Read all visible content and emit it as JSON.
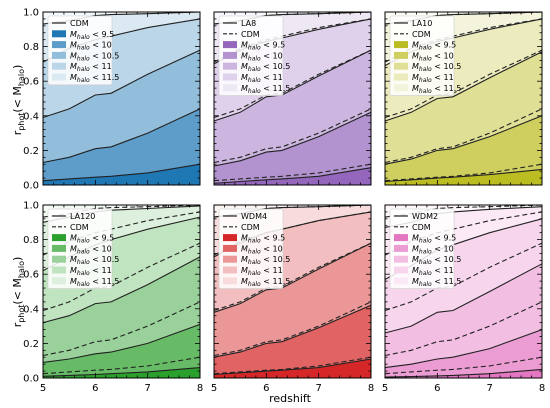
{
  "figure": {
    "ylabel_main": "r",
    "ylabel_sub": "phot",
    "ylabel_paren_open": "(< M",
    "ylabel_paren_sub": "halo",
    "ylabel_paren_close": ")",
    "xlabel": "redshift"
  },
  "chart_data": [
    {
      "type": "area",
      "model": "CDM",
      "color": "#1f77b4",
      "legend": [
        "CDM",
        "M_halo < 9.5",
        "M_halo < 10",
        "M_halo < 10.5",
        "M_halo < 11",
        "M_halo < 11.5"
      ],
      "x": [
        5.0,
        5.5,
        6.0,
        6.3,
        7.0,
        8.0
      ],
      "cdm_curves": [],
      "series": [
        {
          "name": "M_halo < 9.5",
          "values": [
            0.025,
            0.035,
            0.045,
            0.05,
            0.07,
            0.12
          ]
        },
        {
          "name": "M_halo < 10",
          "values": [
            0.13,
            0.16,
            0.21,
            0.22,
            0.3,
            0.44
          ]
        },
        {
          "name": "M_halo < 10.5",
          "values": [
            0.39,
            0.44,
            0.52,
            0.53,
            0.64,
            0.78
          ]
        },
        {
          "name": "M_halo < 11",
          "values": [
            0.71,
            0.79,
            0.84,
            0.86,
            0.91,
            0.96
          ]
        },
        {
          "name": "M_halo < 11.5",
          "values": [
            0.93,
            0.95,
            0.98,
            0.985,
            0.99,
            1.0
          ]
        }
      ],
      "xlim": [
        5,
        8
      ],
      "ylim": [
        0,
        1
      ],
      "xticks": [
        "5",
        "6",
        "7",
        "8"
      ],
      "yticks": [
        "0.0",
        "0.2",
        "0.4",
        "0.6",
        "0.8",
        "1.0"
      ]
    },
    {
      "type": "area",
      "model": "LA8",
      "color": "#9467bd",
      "legend": [
        "LA8",
        "CDM",
        "M_halo < 9.5",
        "M_halo < 10",
        "M_halo < 10.5",
        "M_halo < 11",
        "M_halo < 11.5"
      ],
      "x": [
        5.0,
        5.5,
        6.0,
        6.3,
        7.0,
        8.0
      ],
      "cdm_curves": [
        [
          0.025,
          0.035,
          0.045,
          0.05,
          0.07,
          0.12
        ],
        [
          0.13,
          0.16,
          0.21,
          0.22,
          0.3,
          0.44
        ],
        [
          0.39,
          0.44,
          0.52,
          0.53,
          0.64,
          0.78
        ],
        [
          0.71,
          0.79,
          0.84,
          0.86,
          0.91,
          0.96
        ],
        [
          0.93,
          0.95,
          0.98,
          0.985,
          0.99,
          1.0
        ]
      ],
      "series": [
        {
          "name": "M_halo < 9.5",
          "values": [
            0.01,
            0.02,
            0.03,
            0.035,
            0.05,
            0.1
          ]
        },
        {
          "name": "M_halo < 10",
          "values": [
            0.11,
            0.14,
            0.19,
            0.2,
            0.28,
            0.42
          ]
        },
        {
          "name": "M_halo < 10.5",
          "values": [
            0.37,
            0.42,
            0.51,
            0.52,
            0.63,
            0.78
          ]
        },
        {
          "name": "M_halo < 11",
          "values": [
            0.7,
            0.78,
            0.83,
            0.85,
            0.9,
            0.96
          ]
        },
        {
          "name": "M_halo < 11.5",
          "values": [
            0.93,
            0.95,
            0.98,
            0.985,
            0.99,
            1.0
          ]
        }
      ],
      "xlim": [
        5,
        8
      ],
      "ylim": [
        0,
        1
      ],
      "xticks": [
        "5",
        "6",
        "7",
        "8"
      ],
      "yticks": []
    },
    {
      "type": "area",
      "model": "LA10",
      "color": "#bcbd22",
      "legend": [
        "LA10",
        "CDM",
        "M_halo < 9.5",
        "M_halo < 10",
        "M_halo < 10.5",
        "M_halo < 11",
        "M_halo < 11.5"
      ],
      "x": [
        5.0,
        5.5,
        6.0,
        6.3,
        7.0,
        8.0
      ],
      "cdm_curves": [
        [
          0.025,
          0.035,
          0.045,
          0.05,
          0.07,
          0.12
        ],
        [
          0.13,
          0.16,
          0.21,
          0.22,
          0.3,
          0.44
        ],
        [
          0.39,
          0.44,
          0.52,
          0.53,
          0.64,
          0.78
        ],
        [
          0.71,
          0.79,
          0.84,
          0.86,
          0.91,
          0.96
        ],
        [
          0.93,
          0.95,
          0.98,
          0.985,
          0.99,
          1.0
        ]
      ],
      "series": [
        {
          "name": "M_halo < 9.5",
          "values": [
            0.02,
            0.03,
            0.04,
            0.045,
            0.06,
            0.09
          ]
        },
        {
          "name": "M_halo < 10",
          "values": [
            0.12,
            0.15,
            0.2,
            0.21,
            0.28,
            0.4
          ]
        },
        {
          "name": "M_halo < 10.5",
          "values": [
            0.37,
            0.42,
            0.5,
            0.51,
            0.62,
            0.77
          ]
        },
        {
          "name": "M_halo < 11",
          "values": [
            0.69,
            0.77,
            0.83,
            0.85,
            0.9,
            0.96
          ]
        },
        {
          "name": "M_halo < 11.5",
          "values": [
            0.93,
            0.95,
            0.98,
            0.985,
            0.99,
            1.0
          ]
        }
      ],
      "xlim": [
        5,
        8
      ],
      "ylim": [
        0,
        1
      ],
      "xticks": [
        "5",
        "6",
        "7",
        "8"
      ],
      "yticks": []
    },
    {
      "type": "area",
      "model": "LA120",
      "color": "#2ca02c",
      "legend": [
        "LA120",
        "CDM",
        "M_halo < 9.5",
        "M_halo < 10",
        "M_halo < 10.5",
        "M_halo < 11",
        "M_halo < 11.5"
      ],
      "x": [
        5.0,
        5.5,
        6.0,
        6.3,
        7.0,
        8.0
      ],
      "cdm_curves": [
        [
          0.025,
          0.035,
          0.045,
          0.05,
          0.07,
          0.12
        ],
        [
          0.13,
          0.16,
          0.21,
          0.22,
          0.3,
          0.44
        ],
        [
          0.39,
          0.44,
          0.52,
          0.53,
          0.64,
          0.78
        ],
        [
          0.71,
          0.79,
          0.84,
          0.86,
          0.91,
          0.96
        ],
        [
          0.93,
          0.95,
          0.98,
          0.985,
          0.99,
          1.0
        ]
      ],
      "series": [
        {
          "name": "M_halo < 9.5",
          "values": [
            0.01,
            0.015,
            0.02,
            0.025,
            0.035,
            0.06
          ]
        },
        {
          "name": "M_halo < 10",
          "values": [
            0.09,
            0.11,
            0.14,
            0.15,
            0.2,
            0.31
          ]
        },
        {
          "name": "M_halo < 10.5",
          "values": [
            0.32,
            0.36,
            0.43,
            0.44,
            0.54,
            0.7
          ]
        },
        {
          "name": "M_halo < 11",
          "values": [
            0.62,
            0.7,
            0.77,
            0.8,
            0.86,
            0.93
          ]
        },
        {
          "name": "M_halo < 11.5",
          "values": [
            0.9,
            0.93,
            0.96,
            0.97,
            0.98,
            0.995
          ]
        }
      ],
      "xlim": [
        5,
        8
      ],
      "ylim": [
        0,
        1
      ],
      "xticks": [
        "5",
        "6",
        "7",
        "8"
      ],
      "yticks": [
        "0.0",
        "0.2",
        "0.4",
        "0.6",
        "0.8",
        "1.0"
      ]
    },
    {
      "type": "area",
      "model": "WDM4",
      "color": "#d62728",
      "legend": [
        "WDM4",
        "CDM",
        "M_halo < 9.5",
        "M_halo < 10",
        "M_halo < 10.5",
        "M_halo < 11",
        "M_halo < 11.5"
      ],
      "x": [
        5.0,
        5.5,
        6.0,
        6.3,
        7.0,
        8.0
      ],
      "cdm_curves": [
        [
          0.025,
          0.035,
          0.045,
          0.05,
          0.07,
          0.12
        ],
        [
          0.13,
          0.16,
          0.21,
          0.22,
          0.3,
          0.44
        ],
        [
          0.39,
          0.44,
          0.52,
          0.53,
          0.64,
          0.78
        ],
        [
          0.71,
          0.79,
          0.84,
          0.86,
          0.91,
          0.96
        ],
        [
          0.93,
          0.95,
          0.98,
          0.985,
          0.99,
          1.0
        ]
      ],
      "series": [
        {
          "name": "M_halo < 9.5",
          "values": [
            0.02,
            0.03,
            0.04,
            0.045,
            0.06,
            0.11
          ]
        },
        {
          "name": "M_halo < 10",
          "values": [
            0.12,
            0.15,
            0.2,
            0.21,
            0.29,
            0.42
          ]
        },
        {
          "name": "M_halo < 10.5",
          "values": [
            0.38,
            0.43,
            0.51,
            0.52,
            0.63,
            0.78
          ]
        },
        {
          "name": "M_halo < 11",
          "values": [
            0.7,
            0.78,
            0.84,
            0.86,
            0.91,
            0.96
          ]
        },
        {
          "name": "M_halo < 11.5",
          "values": [
            0.93,
            0.95,
            0.98,
            0.985,
            0.99,
            1.0
          ]
        }
      ],
      "xlim": [
        5,
        8
      ],
      "ylim": [
        0,
        1
      ],
      "xticks": [
        "5",
        "6",
        "7",
        "8"
      ],
      "yticks": []
    },
    {
      "type": "area",
      "model": "WDM2",
      "color": "#e377c2",
      "legend": [
        "WDM2",
        "CDM",
        "M_halo < 9.5",
        "M_halo < 10",
        "M_halo < 10.5",
        "M_halo < 11",
        "M_halo < 11.5"
      ],
      "x": [
        5.0,
        5.5,
        6.0,
        6.3,
        7.0,
        8.0
      ],
      "cdm_curves": [
        [
          0.025,
          0.035,
          0.045,
          0.05,
          0.07,
          0.12
        ],
        [
          0.13,
          0.16,
          0.21,
          0.22,
          0.3,
          0.44
        ],
        [
          0.39,
          0.44,
          0.52,
          0.53,
          0.64,
          0.78
        ],
        [
          0.71,
          0.79,
          0.84,
          0.86,
          0.91,
          0.96
        ],
        [
          0.93,
          0.95,
          0.98,
          0.985,
          0.99,
          1.0
        ]
      ],
      "series": [
        {
          "name": "M_halo < 9.5",
          "values": [
            0.005,
            0.008,
            0.012,
            0.015,
            0.025,
            0.05
          ]
        },
        {
          "name": "M_halo < 10",
          "values": [
            0.06,
            0.08,
            0.11,
            0.12,
            0.17,
            0.28
          ]
        },
        {
          "name": "M_halo < 10.5",
          "values": [
            0.26,
            0.3,
            0.38,
            0.39,
            0.5,
            0.66
          ]
        },
        {
          "name": "M_halo < 11",
          "values": [
            0.57,
            0.65,
            0.74,
            0.77,
            0.84,
            0.92
          ]
        },
        {
          "name": "M_halo < 11.5",
          "values": [
            0.87,
            0.9,
            0.95,
            0.96,
            0.975,
            0.99
          ]
        }
      ],
      "xlim": [
        5,
        8
      ],
      "ylim": [
        0,
        1
      ],
      "xticks": [
        "5",
        "6",
        "7",
        "8"
      ],
      "yticks": []
    }
  ]
}
